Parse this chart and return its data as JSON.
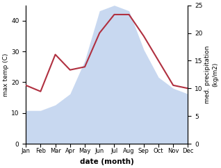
{
  "months": [
    "Jan",
    "Feb",
    "Mar",
    "Apr",
    "May",
    "Jun",
    "Jul",
    "Aug",
    "Sep",
    "Oct",
    "Nov",
    "Dec"
  ],
  "month_nums": [
    1,
    2,
    3,
    4,
    5,
    6,
    7,
    8,
    9,
    10,
    11,
    12
  ],
  "temperature": [
    19,
    17,
    29,
    24,
    25,
    36,
    42,
    42,
    35,
    27,
    19,
    18
  ],
  "precipitation": [
    6,
    6,
    7,
    9,
    15,
    24,
    25,
    24,
    17,
    12,
    10,
    9
  ],
  "temp_color": "#b03040",
  "precip_fill_color": "#c8d8f0",
  "precip_edge_color": "#b0c4e8",
  "ylabel_left": "max temp (C)",
  "ylabel_right": "med. precipitation\n(kg/m2)",
  "xlabel": "date (month)",
  "ylim_left": [
    0,
    45
  ],
  "ylim_right": [
    0,
    25
  ],
  "yticks_left": [
    0,
    10,
    20,
    30,
    40
  ],
  "yticks_right": [
    0,
    5,
    10,
    15,
    20,
    25
  ],
  "line_width": 1.5,
  "figsize": [
    3.18,
    2.42
  ],
  "dpi": 100
}
